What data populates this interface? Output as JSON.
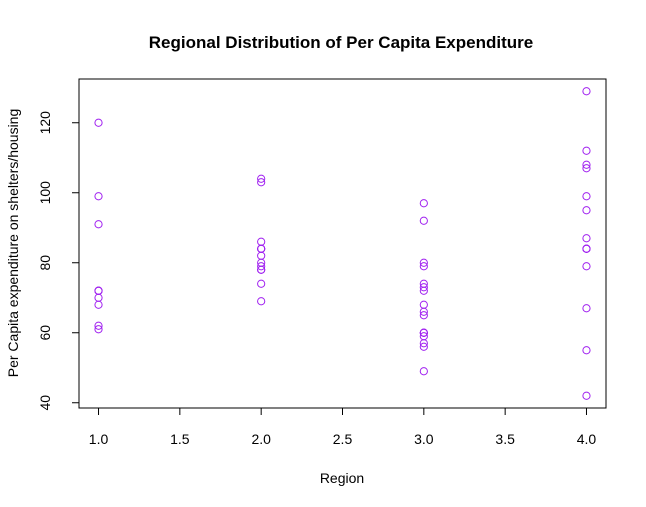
{
  "chart_data": {
    "type": "scatter",
    "title": "Regional Distribution of Per Capita Expenditure",
    "xlabel": "Region",
    "ylabel": "Per Capita expenditure on shelters/housing",
    "xlim": [
      0.88,
      4.12
    ],
    "ylim": [
      38.5,
      132.5
    ],
    "xticks": [
      1.0,
      1.5,
      2.0,
      2.5,
      3.0,
      3.5,
      4.0
    ],
    "xtick_labels": [
      "1.0",
      "1.5",
      "2.0",
      "2.5",
      "3.0",
      "3.5",
      "4.0"
    ],
    "yticks": [
      40,
      60,
      80,
      100,
      120
    ],
    "ytick_labels": [
      "40",
      "60",
      "80",
      "100",
      "120"
    ],
    "grid": false,
    "marker": "open-circle",
    "point_color": "#A020F0",
    "series": [
      {
        "x": [
          1,
          1,
          1,
          1,
          1,
          1,
          1,
          1,
          1,
          1,
          2,
          2,
          2,
          2,
          2,
          2,
          2,
          2,
          2,
          2,
          2,
          2,
          2,
          3,
          3,
          3,
          3,
          3,
          3,
          3,
          3,
          3,
          3,
          3,
          3,
          3,
          3,
          3,
          3,
          3,
          4,
          4,
          4,
          4,
          4,
          4,
          4,
          4,
          4,
          4,
          4,
          4,
          4,
          4
        ],
        "y": [
          120,
          99,
          91,
          72,
          72,
          70,
          68,
          62,
          61,
          72,
          104,
          103,
          86,
          84,
          84,
          82,
          80,
          79,
          78,
          78,
          74,
          69,
          84,
          97,
          92,
          80,
          79,
          74,
          73,
          72,
          68,
          66,
          65,
          60,
          60,
          59,
          57,
          56,
          49,
          60,
          129,
          112,
          108,
          107,
          99,
          95,
          87,
          84,
          84,
          79,
          67,
          55,
          42,
          84
        ]
      }
    ]
  }
}
